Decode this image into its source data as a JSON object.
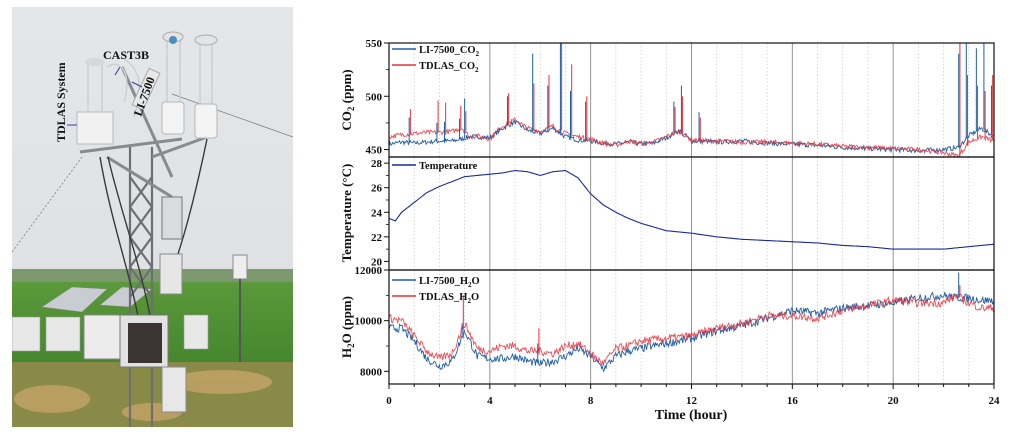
{
  "photo": {
    "labels": {
      "tdlas": "TDLAS System",
      "cast3b": "CAST3B",
      "li7500": "LI-7500"
    }
  },
  "colors": {
    "li7500": "#1f5fa8",
    "tdlas": "#e8303a",
    "temperature": "#1a2a9c",
    "axis": "#111111",
    "grid_major": "#888888",
    "grid_minor": "#c8c8c8"
  },
  "chart_data": [
    {
      "type": "line",
      "title": "",
      "xlabel": "Time (hour)",
      "ylabel": "CO2 (ppm)",
      "ylabel_main": "CO",
      "ylabel_sub": "2",
      "ylabel_tail": " (ppm)",
      "xlim": [
        0,
        24
      ],
      "ylim": [
        443,
        550
      ],
      "yticks": [
        450,
        500,
        550
      ],
      "ytick_labels": [
        "450",
        "500",
        "550"
      ],
      "legend": "top-left",
      "series": [
        {
          "name": "LI-7500_CO2",
          "label_main": "LI-7500_CO",
          "label_sub": "2",
          "color_key": "li7500",
          "x": [
            0,
            0.5,
            1,
            1.5,
            2,
            2.5,
            2.9,
            3.2,
            3.5,
            4,
            4.5,
            5,
            5.5,
            6,
            6.5,
            7,
            7.5,
            8,
            8.5,
            9,
            9.5,
            10,
            10.5,
            11,
            11.5,
            12,
            13,
            14,
            15,
            16,
            17,
            18,
            19,
            20,
            21,
            22,
            22.6,
            23,
            23.5,
            24
          ],
          "y": [
            455,
            457,
            456,
            457,
            458,
            458,
            460,
            462,
            462,
            461,
            470,
            476,
            468,
            465,
            470,
            462,
            459,
            458,
            456,
            455,
            457,
            455,
            456,
            461,
            468,
            458,
            457,
            458,
            456,
            455,
            454,
            452,
            451,
            450,
            449,
            450,
            452,
            463,
            470,
            462
          ]
        },
        {
          "name": "TDLAS_CO2",
          "label_main": "TDLAS_CO",
          "label_sub": "2",
          "color_key": "tdlas",
          "x": [
            0,
            0.5,
            1,
            1.5,
            2,
            2.5,
            2.9,
            3.2,
            3.5,
            4,
            4.5,
            5,
            5.5,
            6,
            6.5,
            7,
            7.5,
            8,
            8.5,
            9,
            9.5,
            10,
            10.5,
            11,
            11.5,
            12,
            13,
            14,
            15,
            16,
            17,
            18,
            19,
            20,
            21,
            22,
            22.6,
            23,
            23.5,
            24
          ],
          "y": [
            462,
            464,
            465,
            466,
            466,
            467,
            470,
            462,
            463,
            460,
            472,
            478,
            470,
            467,
            472,
            465,
            462,
            460,
            456,
            454,
            458,
            456,
            457,
            462,
            467,
            459,
            458,
            457,
            457,
            456,
            455,
            453,
            452,
            451,
            450,
            447,
            444,
            457,
            462,
            458
          ]
        }
      ],
      "spikes": [
        {
          "x": 0.8,
          "li": 480,
          "td": 488
        },
        {
          "x": 1.9,
          "li": 475,
          "td": 496
        },
        {
          "x": 2.2,
          "li": 476,
          "td": 494
        },
        {
          "x": 2.8,
          "li": 479,
          "td": 491
        },
        {
          "x": 3.0,
          "li": 498,
          "td": 486
        },
        {
          "x": 4.7,
          "li": 500,
          "td": 503
        },
        {
          "x": 5.7,
          "li": 540,
          "td": 512
        },
        {
          "x": 6.3,
          "li": 510,
          "td": 520
        },
        {
          "x": 6.8,
          "li": 550,
          "td": 550
        },
        {
          "x": 7.2,
          "li": 505,
          "td": 530
        },
        {
          "x": 7.8,
          "li": 495,
          "td": 500
        },
        {
          "x": 11.3,
          "li": 495,
          "td": 490
        },
        {
          "x": 11.6,
          "li": 510,
          "td": 500
        },
        {
          "x": 12.3,
          "li": 485,
          "td": 480
        },
        {
          "x": 22.6,
          "li": 540,
          "td": 550
        },
        {
          "x": 22.9,
          "li": 550,
          "td": 520
        },
        {
          "x": 23.3,
          "li": 545,
          "td": 510
        },
        {
          "x": 23.6,
          "li": 550,
          "td": 505
        },
        {
          "x": 23.9,
          "li": 510,
          "td": 520
        }
      ]
    },
    {
      "type": "line",
      "title": "",
      "xlabel": "Time (hour)",
      "ylabel": "Temperature (°C)",
      "xlim": [
        0,
        24
      ],
      "ylim": [
        19.3,
        28.5
      ],
      "yticks": [
        20,
        22,
        24,
        26,
        28
      ],
      "ytick_labels": [
        "20",
        "22",
        "24",
        "26",
        "28"
      ],
      "legend": "top-left",
      "series": [
        {
          "name": "Temperature",
          "color_key": "temperature",
          "x": [
            0,
            0.25,
            0.5,
            1,
            1.5,
            2,
            2.5,
            3,
            3.5,
            4,
            4.5,
            5,
            5.5,
            6,
            6.5,
            7,
            7.5,
            8,
            8.5,
            9,
            9.5,
            10,
            11,
            12,
            13,
            14,
            15,
            16,
            17,
            18,
            19,
            20,
            21,
            22,
            23,
            24
          ],
          "y": [
            23.5,
            23.3,
            24.0,
            24.8,
            25.6,
            26.1,
            26.5,
            26.9,
            27.0,
            27.1,
            27.2,
            27.4,
            27.3,
            27.0,
            27.3,
            27.4,
            26.8,
            25.5,
            24.6,
            24.0,
            23.5,
            23.1,
            22.5,
            22.3,
            22.0,
            21.8,
            21.7,
            21.6,
            21.5,
            21.3,
            21.2,
            21.0,
            21.0,
            21.0,
            21.2,
            21.4
          ]
        }
      ]
    },
    {
      "type": "line",
      "title": "",
      "xlabel": "Time (hour)",
      "ylabel": "H2O (ppm)",
      "ylabel_main": "H",
      "ylabel_sub": "2",
      "ylabel_tail": "O (ppm)",
      "xlim": [
        0,
        24
      ],
      "x_ticks": [
        0,
        4,
        8,
        12,
        16,
        20,
        24
      ],
      "x_tick_labels": [
        "0",
        "4",
        "8",
        "12",
        "16",
        "20",
        "24"
      ],
      "ylim": [
        7500,
        12000
      ],
      "yticks": [
        8000,
        10000,
        12000
      ],
      "ytick_labels": [
        "8000",
        "10000",
        "12000"
      ],
      "legend": "top-left",
      "series": [
        {
          "name": "LI-7500_H2O",
          "label_main": "LI-7500_H",
          "label_sub": "2",
          "label_tail": "O",
          "color_key": "li7500",
          "x": [
            0,
            0.5,
            1,
            1.5,
            2,
            2.5,
            3,
            3.5,
            4,
            4.5,
            5,
            5.5,
            6,
            6.5,
            7,
            7.5,
            8,
            8.5,
            9,
            9.5,
            10,
            11,
            12,
            13,
            14,
            15,
            16,
            17,
            18,
            19,
            20,
            21,
            22,
            22.5,
            23,
            23.5,
            24
          ],
          "y": [
            9700,
            9700,
            9200,
            8500,
            8200,
            8400,
            9600,
            8600,
            8500,
            8500,
            8600,
            8400,
            8300,
            8400,
            8600,
            8900,
            8600,
            8100,
            8600,
            8800,
            8900,
            9100,
            9300,
            9600,
            9800,
            10100,
            10400,
            10300,
            10500,
            10600,
            10700,
            10900,
            11000,
            10900,
            10900,
            10800,
            10800
          ]
        },
        {
          "name": "TDLAS_H2O",
          "label_main": "TDLAS_H",
          "label_sub": "2",
          "label_tail": "O",
          "color_key": "tdlas",
          "x": [
            0,
            0.5,
            1,
            1.5,
            2,
            2.5,
            3,
            3.5,
            4,
            4.5,
            5,
            5.5,
            6,
            6.5,
            7,
            7.5,
            8,
            8.5,
            9,
            9.5,
            10,
            11,
            12,
            13,
            14,
            15,
            16,
            17,
            18,
            19,
            20,
            21,
            22,
            22.5,
            23,
            23.5,
            24
          ],
          "y": [
            10100,
            10000,
            9400,
            8800,
            8500,
            8700,
            9900,
            8900,
            8800,
            9000,
            9000,
            8800,
            8800,
            8700,
            9000,
            9100,
            8700,
            8300,
            8900,
            9000,
            9200,
            9300,
            9400,
            9700,
            9900,
            10200,
            10200,
            10100,
            10400,
            10600,
            10800,
            10700,
            10700,
            11000,
            10700,
            10500,
            10500
          ]
        }
      ],
      "spikes": [
        {
          "x": 2.9,
          "li": 9900,
          "td": 11000
        },
        {
          "x": 5.9,
          "li": 9100,
          "td": 9700
        },
        {
          "x": 22.6,
          "li": 11900,
          "td": 11400
        }
      ]
    }
  ]
}
